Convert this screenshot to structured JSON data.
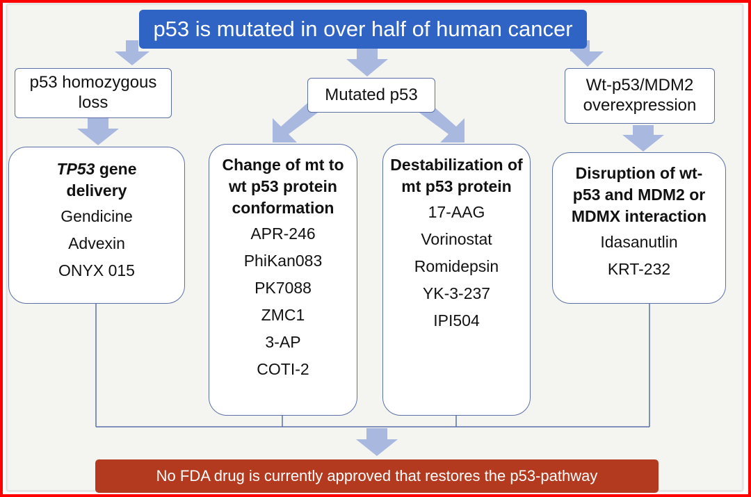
{
  "top_banner": {
    "text": "p53 is mutated in over half of human cancer"
  },
  "categories": [
    {
      "label": "p53 homozygous loss"
    },
    {
      "label": "Mutated p53"
    },
    {
      "label": "Wt-p53/MDM2 overexpression"
    }
  ],
  "strategies": [
    {
      "title_italic": "TP53",
      "title_rest": " gene delivery",
      "drugs": [
        "Gendicine",
        "Advexin",
        "ONYX 015"
      ]
    },
    {
      "title_italic": "",
      "title_rest": "Change of mt to wt p53 protein conformation",
      "drugs": [
        "APR-246",
        "PhiKan083",
        "PK7088",
        "ZMC1",
        "3-AP",
        "COTI-2"
      ]
    },
    {
      "title_italic": "",
      "title_rest": "Destabilization of mt p53 protein",
      "drugs": [
        "17-AAG",
        "Vorinostat",
        "Romidepsin",
        "YK-3-237",
        "IPI504"
      ]
    },
    {
      "title_italic": "",
      "title_rest": "Disruption of wt-p53 and MDM2 or MDMX interaction",
      "drugs": [
        "Idasanutlin",
        "KRT-232"
      ]
    }
  ],
  "bottom_banner": {
    "text": "No FDA drug is currently approved that restores the p53-pathway"
  },
  "colors": {
    "top_banner": "#2f63c4",
    "bottom_banner": "#b33a1e",
    "arrow": "#a9b8df",
    "box_border": "#5a6fa8",
    "frame": "#ff0000"
  }
}
